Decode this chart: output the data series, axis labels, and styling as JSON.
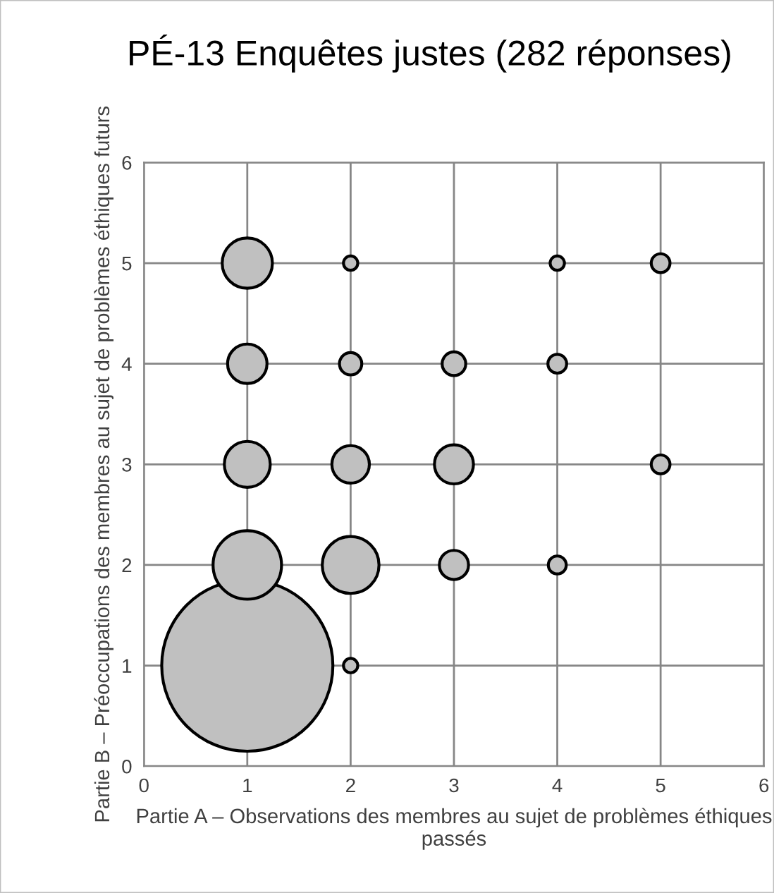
{
  "chart_data": {
    "type": "bubble",
    "title": "PÉ-13 Enquêtes justes (282 réponses)",
    "xlabel": "Partie A – Observations des membres au sujet de problèmes éthiques passés",
    "ylabel": "Partie B – Préoccupations des membres au sujet de problèmes éthiques futurs",
    "relative": false,
    "series": [
      {
        "color": "#c0c0c0",
        "x": [
          1,
          1,
          2,
          1,
          2,
          3,
          1,
          1,
          2,
          4,
          5,
          2,
          3,
          4,
          5,
          3,
          4,
          2
        ],
        "values": [
          1,
          2,
          2,
          3,
          3,
          3,
          4,
          5,
          5,
          5,
          5,
          4,
          4,
          4,
          3,
          2,
          2,
          1
        ],
        "sizes": [
          1,
          0.16,
          0.11,
          0.072,
          0.048,
          0.052,
          0.053,
          0.086,
          0.007,
          0.007,
          0.012,
          0.017,
          0.019,
          0.012,
          0.012,
          0.029,
          0.011,
          0.007
        ]
      }
    ],
    "xlim": [
      0,
      6
    ],
    "ylim": [
      0,
      6
    ],
    "xticks": [
      0,
      1,
      2,
      3,
      4,
      5,
      6
    ],
    "yticks": [
      0,
      1,
      2,
      3,
      4,
      5,
      6
    ],
    "grid": true,
    "legend": false
  }
}
